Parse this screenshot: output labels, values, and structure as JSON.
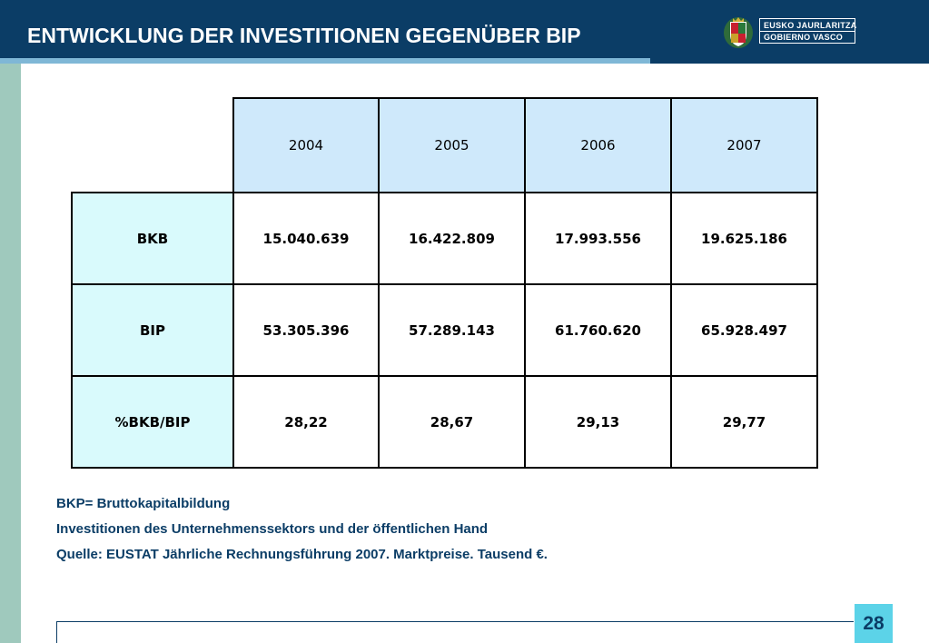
{
  "title": "ENTWICKLUNG DER INVESTITIONEN GEGENÜBER BIP",
  "logo": {
    "line1": "EUSKO JAURLARITZA",
    "line2": "GOBIERNO VASCO",
    "emblem": "coat-of-arms-icon"
  },
  "table": {
    "years": [
      "2004",
      "2005",
      "2006",
      "2007"
    ],
    "rows": [
      {
        "label": "BKB",
        "values": [
          "15.040.639",
          "16.422.809",
          "17.993.556",
          "19.625.186"
        ]
      },
      {
        "label": "BIP",
        "values": [
          "53.305.396",
          "57.289.143",
          "61.760.620",
          "65.928.497"
        ]
      },
      {
        "label": "%BKB/BIP",
        "values": [
          "28,22",
          "28,67",
          "29,13",
          "29,77"
        ]
      }
    ]
  },
  "notes": [
    "BKP= Bruttokapitalbildung",
    "Investitionen des Unternehmenssektors und der öffentlichen Hand",
    "Quelle: EUSTAT Jährliche Rechnungsführung 2007. Marktpreise. Tausend €."
  ],
  "page_number": "28",
  "colors": {
    "header": "#0b3d66",
    "accent": "#7fb7d6",
    "stripe": "#9fc9bd",
    "year_cell": "#cfe9fb",
    "row_head": "#d9fafc",
    "page_badge": "#5cd3e8"
  }
}
